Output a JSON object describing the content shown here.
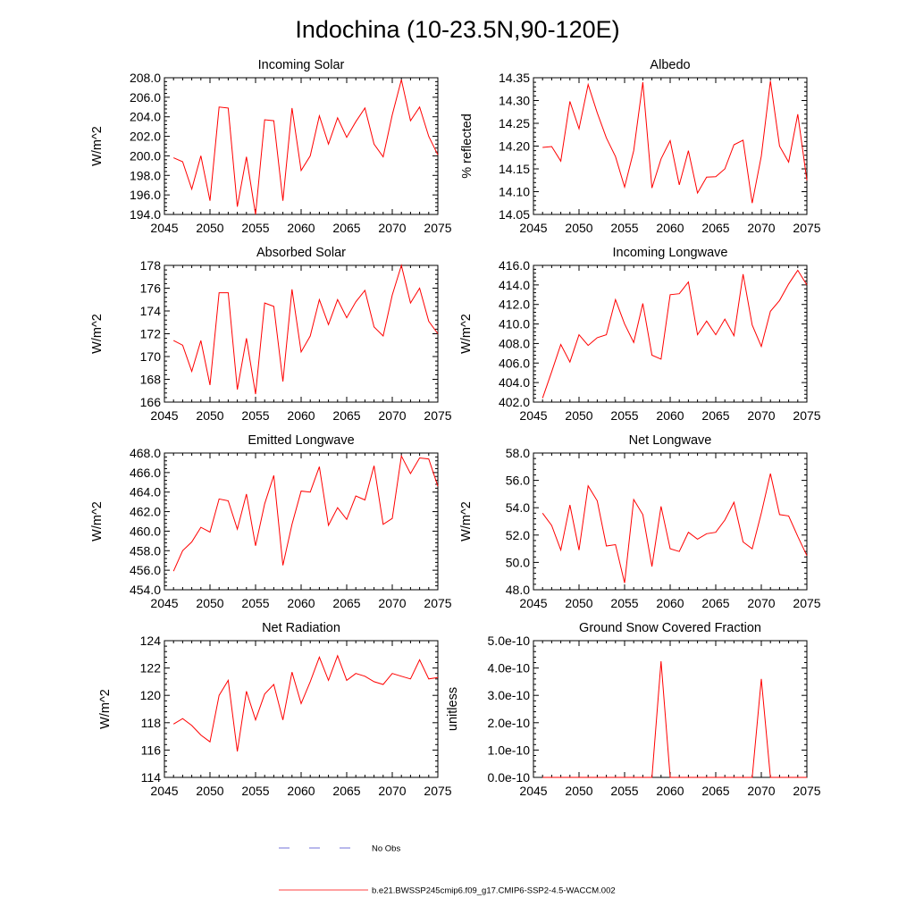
{
  "figure_title": "Indochina (10-23.5N,90-120E)",
  "legend": {
    "obs_label": "No Obs",
    "obs_color": "#4444cc",
    "model_label": "b.e21.BWSSP245cmip6.f09_g17.CMIP6-SSP2-4.5-WACCM.002",
    "model_color": "#ff0000"
  },
  "chart_data": [
    {
      "type": "line",
      "title": "Incoming Solar",
      "ylabel": "W/m^2",
      "xlim": [
        2045,
        2075
      ],
      "ylim": [
        194,
        208
      ],
      "xticks": [
        "2045",
        "2050",
        "2055",
        "2060",
        "2065",
        "2070",
        "2075"
      ],
      "yticks": [
        "194.0",
        "196.0",
        "198.0",
        "200.0",
        "202.0",
        "204.0",
        "206.0",
        "208.0"
      ],
      "grid": false,
      "x": [
        2046,
        2047,
        2048,
        2049,
        2050,
        2051,
        2052,
        2053,
        2054,
        2055,
        2056,
        2057,
        2058,
        2059,
        2060,
        2061,
        2062,
        2063,
        2064,
        2065,
        2066,
        2067,
        2068,
        2069,
        2070,
        2071,
        2072,
        2073,
        2074,
        2075
      ],
      "series": [
        {
          "name": "b.e21.BWSSP245cmip6.f09_g17.CMIP6-SSP2-4.5-WACCM.002",
          "values": [
            199.8,
            199.4,
            196.6,
            200.0,
            195.4,
            205.0,
            204.9,
            194.8,
            199.9,
            194.0,
            203.7,
            203.6,
            195.4,
            204.9,
            198.5,
            200.0,
            204.1,
            201.2,
            203.9,
            201.9,
            203.5,
            204.9,
            201.2,
            199.9,
            204.2,
            207.8,
            203.6,
            205.0,
            202.0,
            200.1
          ]
        }
      ]
    },
    {
      "type": "line",
      "title": "Albedo",
      "ylabel": "% reflected",
      "xlim": [
        2045,
        2075
      ],
      "ylim": [
        14.05,
        14.35
      ],
      "xticks": [
        "2045",
        "2050",
        "2055",
        "2060",
        "2065",
        "2070",
        "2075"
      ],
      "yticks": [
        "14.05",
        "14.10",
        "14.15",
        "14.20",
        "14.25",
        "14.30",
        "14.35"
      ],
      "grid": false,
      "x": [
        2046,
        2047,
        2048,
        2049,
        2050,
        2051,
        2052,
        2053,
        2054,
        2055,
        2056,
        2057,
        2058,
        2059,
        2060,
        2061,
        2062,
        2063,
        2064,
        2065,
        2066,
        2067,
        2068,
        2069,
        2070,
        2071,
        2072,
        2073,
        2074,
        2075
      ],
      "series": [
        {
          "name": "b.e21.BWSSP245cmip6.f09_g17.CMIP6-SSP2-4.5-WACCM.002",
          "values": [
            14.197,
            14.199,
            14.167,
            14.298,
            14.238,
            14.335,
            14.273,
            14.218,
            14.177,
            14.11,
            14.19,
            14.34,
            14.108,
            14.172,
            14.212,
            14.115,
            14.19,
            14.097,
            14.132,
            14.133,
            14.15,
            14.203,
            14.213,
            14.075,
            14.178,
            14.343,
            14.2,
            14.165,
            14.27,
            14.125
          ]
        }
      ]
    },
    {
      "type": "line",
      "title": "Absorbed Solar",
      "ylabel": "W/m^2",
      "xlim": [
        2045,
        2075
      ],
      "ylim": [
        166,
        178
      ],
      "xticks": [
        "2045",
        "2050",
        "2055",
        "2060",
        "2065",
        "2070",
        "2075"
      ],
      "yticks": [
        "166",
        "168",
        "170",
        "172",
        "174",
        "176",
        "178"
      ],
      "grid": false,
      "x": [
        2046,
        2047,
        2048,
        2049,
        2050,
        2051,
        2052,
        2053,
        2054,
        2055,
        2056,
        2057,
        2058,
        2059,
        2060,
        2061,
        2062,
        2063,
        2064,
        2065,
        2066,
        2067,
        2068,
        2069,
        2070,
        2071,
        2072,
        2073,
        2074,
        2075
      ],
      "series": [
        {
          "name": "b.e21.BWSSP245cmip6.f09_g17.CMIP6-SSP2-4.5-WACCM.002",
          "values": [
            171.4,
            171.0,
            168.7,
            171.4,
            167.5,
            175.6,
            175.6,
            167.1,
            171.6,
            166.7,
            174.7,
            174.4,
            167.8,
            175.9,
            170.4,
            171.8,
            175.0,
            172.8,
            175.0,
            173.4,
            174.8,
            175.8,
            172.6,
            171.8,
            175.4,
            178.0,
            174.7,
            176.0,
            173.1,
            172.0
          ]
        }
      ]
    },
    {
      "type": "line",
      "title": "Incoming Longwave",
      "ylabel": "W/m^2",
      "xlim": [
        2045,
        2075
      ],
      "ylim": [
        402,
        416
      ],
      "xticks": [
        "2045",
        "2050",
        "2055",
        "2060",
        "2065",
        "2070",
        "2075"
      ],
      "yticks": [
        "402.0",
        "404.0",
        "406.0",
        "408.0",
        "410.0",
        "412.0",
        "414.0",
        "416.0"
      ],
      "grid": false,
      "x": [
        2046,
        2047,
        2048,
        2049,
        2050,
        2051,
        2052,
        2053,
        2054,
        2055,
        2056,
        2057,
        2058,
        2059,
        2060,
        2061,
        2062,
        2063,
        2064,
        2065,
        2066,
        2067,
        2068,
        2069,
        2070,
        2071,
        2072,
        2073,
        2074,
        2075
      ],
      "series": [
        {
          "name": "b.e21.BWSSP245cmip6.f09_g17.CMIP6-SSP2-4.5-WACCM.002",
          "values": [
            402.4,
            405.1,
            407.9,
            406.1,
            408.9,
            407.8,
            408.6,
            408.9,
            412.5,
            410.0,
            408.1,
            412.1,
            406.8,
            406.4,
            413.0,
            413.1,
            414.3,
            408.9,
            410.3,
            408.9,
            410.5,
            408.8,
            415.1,
            409.9,
            407.7,
            411.3,
            412.4,
            414.1,
            415.5,
            414.0
          ]
        }
      ]
    },
    {
      "type": "line",
      "title": "Emitted Longwave",
      "ylabel": "W/m^2",
      "xlim": [
        2045,
        2075
      ],
      "ylim": [
        454,
        468
      ],
      "xticks": [
        "2045",
        "2050",
        "2055",
        "2060",
        "2065",
        "2070",
        "2075"
      ],
      "yticks": [
        "454.0",
        "456.0",
        "458.0",
        "460.0",
        "462.0",
        "464.0",
        "466.0",
        "468.0"
      ],
      "grid": false,
      "x": [
        2046,
        2047,
        2048,
        2049,
        2050,
        2051,
        2052,
        2053,
        2054,
        2055,
        2056,
        2057,
        2058,
        2059,
        2060,
        2061,
        2062,
        2063,
        2064,
        2065,
        2066,
        2067,
        2068,
        2069,
        2070,
        2071,
        2072,
        2073,
        2074,
        2075
      ],
      "series": [
        {
          "name": "b.e21.BWSSP245cmip6.f09_g17.CMIP6-SSP2-4.5-WACCM.002",
          "values": [
            455.9,
            458.0,
            458.9,
            460.4,
            459.9,
            463.3,
            463.1,
            460.2,
            463.8,
            458.5,
            462.8,
            465.7,
            456.5,
            460.7,
            464.1,
            464.0,
            466.6,
            460.6,
            462.4,
            461.2,
            463.6,
            463.2,
            466.7,
            460.7,
            461.3,
            467.7,
            465.9,
            467.5,
            467.4,
            464.6
          ]
        }
      ]
    },
    {
      "type": "line",
      "title": "Net Longwave",
      "ylabel": "W/m^2",
      "xlim": [
        2045,
        2075
      ],
      "ylim": [
        48,
        58
      ],
      "xticks": [
        "2045",
        "2050",
        "2055",
        "2060",
        "2065",
        "2070",
        "2075"
      ],
      "yticks": [
        "48.0",
        "50.0",
        "52.0",
        "54.0",
        "56.0",
        "58.0"
      ],
      "grid": false,
      "x": [
        2046,
        2047,
        2048,
        2049,
        2050,
        2051,
        2052,
        2053,
        2054,
        2055,
        2056,
        2057,
        2058,
        2059,
        2060,
        2061,
        2062,
        2063,
        2064,
        2065,
        2066,
        2067,
        2068,
        2069,
        2070,
        2071,
        2072,
        2073,
        2074,
        2075
      ],
      "series": [
        {
          "name": "b.e21.BWSSP245cmip6.f09_g17.CMIP6-SSP2-4.5-WACCM.002",
          "values": [
            53.6,
            52.7,
            50.9,
            54.2,
            50.9,
            55.6,
            54.5,
            51.2,
            51.3,
            48.5,
            54.6,
            53.5,
            49.7,
            54.1,
            51.0,
            50.8,
            52.2,
            51.7,
            52.1,
            52.2,
            53.1,
            54.4,
            51.5,
            51.0,
            53.6,
            56.5,
            53.5,
            53.4,
            51.9,
            50.5
          ]
        }
      ]
    },
    {
      "type": "line",
      "title": "Net Radiation",
      "ylabel": "W/m^2",
      "xlim": [
        2045,
        2075
      ],
      "ylim": [
        114,
        124
      ],
      "xticks": [
        "2045",
        "2050",
        "2055",
        "2060",
        "2065",
        "2070",
        "2075"
      ],
      "yticks": [
        "114",
        "116",
        "118",
        "120",
        "122",
        "124"
      ],
      "grid": false,
      "x": [
        2046,
        2047,
        2048,
        2049,
        2050,
        2051,
        2052,
        2053,
        2054,
        2055,
        2056,
        2057,
        2058,
        2059,
        2060,
        2061,
        2062,
        2063,
        2064,
        2065,
        2066,
        2067,
        2068,
        2069,
        2070,
        2071,
        2072,
        2073,
        2074,
        2075
      ],
      "series": [
        {
          "name": "b.e21.BWSSP245cmip6.f09_g17.CMIP6-SSP2-4.5-WACCM.002",
          "values": [
            117.9,
            118.3,
            117.8,
            117.1,
            116.6,
            120.0,
            121.1,
            115.9,
            120.3,
            118.2,
            120.1,
            120.8,
            118.2,
            121.7,
            119.4,
            121.0,
            122.8,
            121.1,
            122.9,
            121.1,
            121.6,
            121.4,
            121.0,
            120.8,
            121.6,
            121.4,
            121.2,
            122.6,
            121.2,
            121.3
          ]
        }
      ]
    },
    {
      "type": "line",
      "title": "Ground Snow Covered Fraction",
      "ylabel": "unitless",
      "xlim": [
        2045,
        2075
      ],
      "ylim": [
        0,
        5e-10
      ],
      "xticks": [
        "2045",
        "2050",
        "2055",
        "2060",
        "2065",
        "2070",
        "2075"
      ],
      "yticks": [
        "0.0e-10",
        "1.0e-10",
        "2.0e-10",
        "3.0e-10",
        "4.0e-10",
        "5.0e-10"
      ],
      "grid": false,
      "x": [
        2046,
        2047,
        2048,
        2049,
        2050,
        2051,
        2052,
        2053,
        2054,
        2055,
        2056,
        2057,
        2058,
        2059,
        2060,
        2061,
        2062,
        2063,
        2064,
        2065,
        2066,
        2067,
        2068,
        2069,
        2070,
        2071,
        2072,
        2073,
        2074,
        2075
      ],
      "series": [
        {
          "name": "b.e21.BWSSP245cmip6.f09_g17.CMIP6-SSP2-4.5-WACCM.002",
          "values": [
            0,
            0,
            0,
            0,
            0,
            0,
            0,
            0,
            0,
            0,
            0,
            0,
            0,
            4.25e-10,
            0,
            0,
            0,
            0,
            0,
            0,
            0,
            0,
            0,
            0,
            3.6e-10,
            0,
            0,
            0,
            0,
            0
          ]
        }
      ]
    }
  ]
}
